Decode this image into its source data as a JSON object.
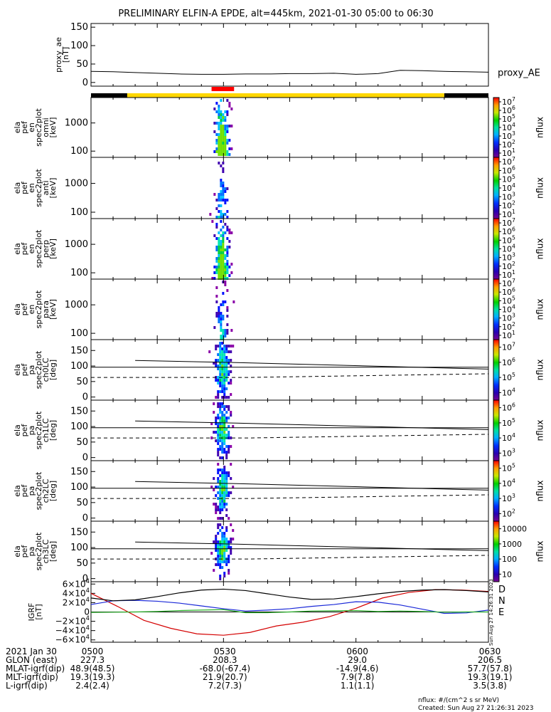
{
  "title": "PRELIMINARY ELFIN-A EPDE, alt=445km, 2021-01-30 05:00 to 06:30",
  "colors": {
    "sun": "#ffd700",
    "shadow": "#000000",
    "science": "#ff0000",
    "bx": "#d40000",
    "by": "#1a28d8",
    "bz": "#22aa22",
    "bmag": "#000000"
  },
  "chart_data": [
    {
      "type": "line",
      "name": "proxy_ae",
      "ylabel": [
        "proxy_ae",
        "[nT]"
      ],
      "ylim": [
        -10,
        160
      ],
      "yticks": [
        0,
        50,
        100,
        150
      ],
      "legend": "proxy_AE",
      "series": [
        {
          "name": "proxy_AE",
          "x": [
            0,
            5,
            10,
            15,
            20,
            25,
            30,
            35,
            40,
            45,
            50,
            55,
            60,
            65,
            70,
            75,
            80,
            85,
            90
          ],
          "values": [
            30,
            29,
            27,
            25,
            23,
            22,
            22,
            23,
            23,
            24,
            24,
            25,
            22,
            24,
            33,
            32,
            30,
            29,
            28
          ]
        }
      ]
    },
    {
      "type": "bar",
      "name": "orbit-bars",
      "segments": [
        {
          "kind": "shadow",
          "start": 0,
          "end": 8.2
        },
        {
          "kind": "sun",
          "start": 8.2,
          "end": 80
        },
        {
          "kind": "shadow",
          "start": 80,
          "end": 90
        }
      ],
      "science_zones": [
        {
          "start": 27.3,
          "end": 32.4
        }
      ]
    },
    {
      "type": "heatmap",
      "name": "spec-omni",
      "ylabel": [
        "ela",
        "pef",
        "en",
        "spec2plot",
        "omni",
        "[keV]"
      ],
      "yscale": "log",
      "yticks": [
        100,
        1000
      ],
      "colorbar": {
        "label": "nflux",
        "scale": "log",
        "ticks": [
          "10^7",
          "10^6",
          "10^5",
          "10^4",
          "10^3",
          "10^2",
          "10^1"
        ]
      }
    },
    {
      "type": "heatmap",
      "name": "spec-anti",
      "ylabel": [
        "ela",
        "pef",
        "en",
        "spec2plot",
        "anti",
        "[keV]"
      ],
      "yscale": "log",
      "yticks": [
        100,
        1000
      ],
      "colorbar": {
        "label": "nflux",
        "scale": "log",
        "ticks": [
          "10^7",
          "10^6",
          "10^5",
          "10^4",
          "10^3",
          "10^2",
          "10^1"
        ]
      }
    },
    {
      "type": "heatmap",
      "name": "spec-perp",
      "ylabel": [
        "ela",
        "pef",
        "en",
        "spec2plot",
        "perp",
        "[keV]"
      ],
      "yscale": "log",
      "yticks": [
        100,
        1000
      ],
      "colorbar": {
        "label": "nflux",
        "scale": "log",
        "ticks": [
          "10^7",
          "10^6",
          "10^5",
          "10^4",
          "10^3",
          "10^2",
          "10^1"
        ]
      }
    },
    {
      "type": "heatmap",
      "name": "spec-para",
      "ylabel": [
        "ela",
        "pef",
        "en",
        "spec2plot",
        "para",
        "[keV]"
      ],
      "yscale": "log",
      "yticks": [
        100,
        1000
      ],
      "colorbar": {
        "label": "nflux",
        "scale": "log",
        "ticks": [
          "10^7",
          "10^6",
          "10^5",
          "10^4",
          "10^3",
          "10^2",
          "10^1"
        ]
      }
    },
    {
      "type": "heatmap",
      "name": "pa-ch0",
      "ylabel": [
        "ela",
        "pef",
        "pa",
        "spec2plot",
        "ch0LC",
        "[deg]"
      ],
      "ylim": [
        -10,
        185
      ],
      "yticks": [
        0,
        50,
        100,
        150
      ],
      "colorbar": {
        "label": "nflux",
        "scale": "log",
        "ticks": [
          "10^7",
          "10^6",
          "10^5",
          "10^4"
        ]
      }
    },
    {
      "type": "heatmap",
      "name": "pa-ch1",
      "ylabel": [
        "ela",
        "pef",
        "pa",
        "spec2plot",
        "ch1LC",
        "[deg]"
      ],
      "ylim": [
        -10,
        185
      ],
      "yticks": [
        0,
        50,
        100,
        150
      ],
      "colorbar": {
        "label": "nflux",
        "scale": "log",
        "ticks": [
          "10^6",
          "10^5",
          "10^4",
          "10^3"
        ]
      }
    },
    {
      "type": "heatmap",
      "name": "pa-ch2",
      "ylabel": [
        "ela",
        "pef",
        "pa",
        "spec2plot",
        "ch2LC",
        "[deg]"
      ],
      "ylim": [
        -10,
        185
      ],
      "yticks": [
        0,
        50,
        100,
        150
      ],
      "colorbar": {
        "label": "nflux",
        "scale": "log",
        "ticks": [
          "10^5",
          "10^4",
          "10^3",
          "10^2"
        ]
      }
    },
    {
      "type": "heatmap",
      "name": "pa-ch3",
      "ylabel": [
        "ela",
        "pef",
        "pa",
        "spec2plot",
        "ch3LC",
        "[deg]"
      ],
      "ylim": [
        -10,
        185
      ],
      "yticks": [
        0,
        50,
        100,
        150
      ],
      "colorbar": {
        "label": "nflux",
        "scale": "log",
        "ticks": [
          "10000",
          "1000",
          "100",
          "10"
        ]
      }
    },
    {
      "type": "line",
      "name": "igrf",
      "ylabel": [
        "IGRF",
        "[nT]"
      ],
      "ylim": [
        -65000,
        65000
      ],
      "yticks": [
        "6×10^4",
        "4×10^4",
        "2×10^4",
        "0",
        "−2×10^4",
        "−4×10^4",
        "−6×10^4"
      ],
      "legend": [
        "D",
        "N",
        "E"
      ],
      "series": [
        {
          "name": "D",
          "x": [
            0,
            6,
            12,
            18,
            24,
            30,
            36,
            42,
            48,
            54,
            60,
            66,
            72,
            78,
            84,
            90
          ],
          "values": [
            40000,
            12000,
            -18000,
            -35000,
            -47000,
            -50000,
            -44000,
            -30000,
            -22000,
            -10000,
            8000,
            30000,
            42000,
            48000,
            47000,
            44000
          ]
        },
        {
          "name": "N",
          "x": [
            0,
            5,
            10,
            15,
            20,
            25,
            30,
            35,
            40,
            45,
            50,
            55,
            60,
            65,
            70,
            75,
            80,
            85,
            90
          ],
          "values": [
            16000,
            24000,
            25000,
            23000,
            19000,
            13000,
            7000,
            2000,
            4000,
            7000,
            12000,
            16000,
            22000,
            21000,
            15000,
            6000,
            -3000,
            -2000,
            4000
          ]
        },
        {
          "name": "E",
          "x": [
            0,
            5,
            10,
            15,
            20,
            25,
            30,
            35,
            40,
            45,
            50,
            55,
            60,
            65,
            70,
            75,
            80,
            85,
            90
          ],
          "values": [
            -1000,
            -500,
            0,
            1000,
            3000,
            4000,
            5000,
            -1500,
            -1500,
            0,
            2000,
            2500,
            3000,
            1000,
            2000,
            1000,
            -500,
            0,
            0
          ]
        },
        {
          "name": "|B|",
          "x": [
            0,
            5,
            10,
            15,
            20,
            25,
            30,
            35,
            40,
            45,
            50,
            55,
            60,
            65,
            70,
            75,
            80,
            85,
            90
          ],
          "values": [
            30000,
            24000,
            26000,
            33000,
            41000,
            47000,
            49000,
            46000,
            39000,
            32000,
            27000,
            28000,
            33000,
            39000,
            44000,
            47000,
            48000,
            46000,
            43000
          ]
        }
      ]
    }
  ],
  "x_labels": {
    "row_names": [
      "2021 Jan 30",
      "GLON (east)",
      "MLAT-igrf(dip)",
      "MLT-igrf(dip)",
      "L-igrf(dip)"
    ],
    "columns": [
      {
        "x": 0,
        "values": [
          "0500",
          "227.3",
          "48.9(48.5)",
          "19.3(19.3)",
          "2.4(2.4)"
        ]
      },
      {
        "x": 30,
        "values": [
          "0530",
          "208.3",
          "-68.0(-67.4)",
          "21.9(20.7)",
          "7.2(7.3)"
        ]
      },
      {
        "x": 60,
        "values": [
          "0600",
          "29.0",
          "-14.9(4.6)",
          "7.9(7.8)",
          "1.1(1.1)"
        ]
      },
      {
        "x": 90,
        "values": [
          "0630",
          "206.5",
          "57.7(57.8)",
          "19.3(19.1)",
          "3.5(3.8)"
        ]
      }
    ]
  },
  "footer": {
    "units": "nflux: #/(cm^2 s sr MeV)",
    "created": "Created: Sun Aug 27 21:26:31 2023"
  },
  "side_stamp": "Sun Aug 27 14:26:31 2023"
}
